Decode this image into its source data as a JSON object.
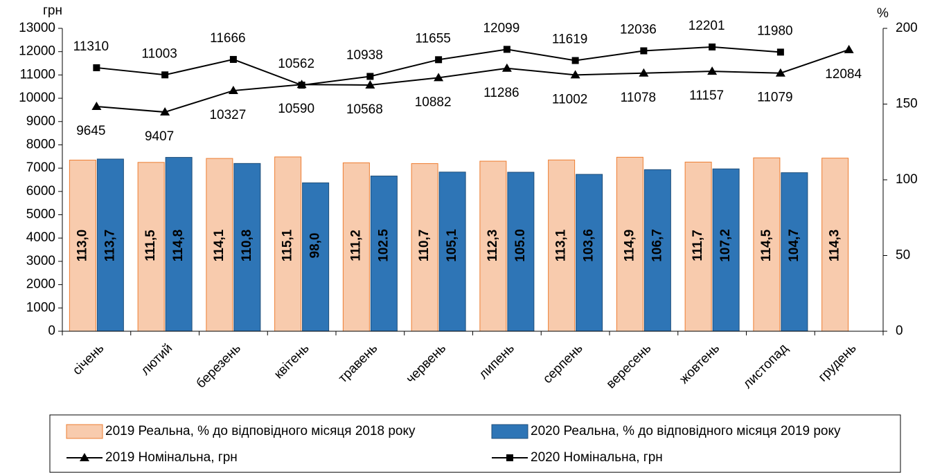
{
  "chart_data": {
    "type": "bar-line",
    "y_label": "грн",
    "y2_label": "%",
    "categories": [
      "січень",
      "лютий",
      "березень",
      "квітень",
      "травень",
      "червень",
      "липень",
      "серпень",
      "вересень",
      "жовтень",
      "листопад",
      "грудень"
    ],
    "series": [
      {
        "name": "2019 Реальна, % до відповідного місяця 2018 року",
        "type": "bar",
        "axis": "y2",
        "color": "#f8cbad",
        "edge": "#ed7d31",
        "values": [
          113.0,
          111.5,
          114.1,
          115.1,
          111.2,
          110.7,
          112.3,
          113.1,
          114.9,
          111.7,
          114.5,
          114.3
        ],
        "value_labels": [
          "113,0",
          "111,5",
          "114,1",
          "115,1",
          "111,2",
          "110,7",
          "112,3",
          "113,1",
          "114,9",
          "111,7",
          "114,5",
          "114,3"
        ]
      },
      {
        "name": "2020 Реальна, % до відповідного місяця 2019 року",
        "type": "bar",
        "axis": "y2",
        "color": "#2e75b6",
        "edge": "#1f4e79",
        "values": [
          113.7,
          114.8,
          110.8,
          98.0,
          102.5,
          105.1,
          105.0,
          103.6,
          106.7,
          107.2,
          104.7,
          null
        ],
        "value_labels": [
          "113,7",
          "114,8",
          "110,8",
          "98,0",
          "102.5",
          "105,1",
          "105.0",
          "103,6",
          "106,7",
          "107,2",
          "104,7",
          null
        ]
      },
      {
        "name": "2019 Номінальна, грн",
        "type": "line",
        "marker": "triangle",
        "color": "#000000",
        "label_side": "below",
        "values": [
          9645,
          9407,
          10327,
          10590,
          10568,
          10882,
          11286,
          11002,
          11078,
          11157,
          11079,
          12084
        ]
      },
      {
        "name": "2020 Номінальна, грн",
        "type": "line",
        "marker": "square",
        "color": "#000000",
        "label_side": "above",
        "values": [
          11310,
          11003,
          11666,
          10562,
          10938,
          11655,
          12099,
          11619,
          12036,
          12201,
          11980,
          null
        ]
      }
    ],
    "ylim": [
      0,
      13000
    ],
    "yticks": [
      0,
      1000,
      2000,
      3000,
      4000,
      5000,
      6000,
      7000,
      8000,
      9000,
      10000,
      11000,
      12000,
      13000
    ],
    "y2lim": [
      0,
      200
    ],
    "y2ticks": [
      0,
      50,
      100,
      150,
      200
    ],
    "legend": "bottom"
  }
}
